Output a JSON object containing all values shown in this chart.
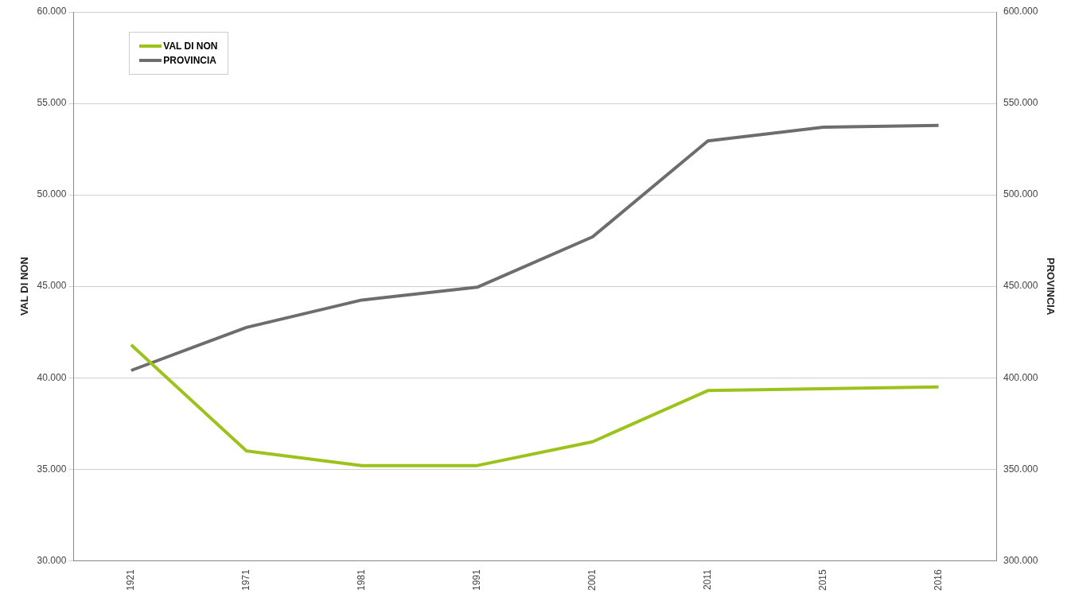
{
  "chart_data": {
    "type": "line",
    "ylabel": "VAL DI NON",
    "y2label": "PROVINCIA",
    "categories": [
      "1921",
      "1971",
      "1981",
      "1991",
      "2001",
      "2011",
      "2015",
      "2016"
    ],
    "series": [
      {
        "name": "VAL DI NON",
        "color": "#9bc31c",
        "values": [
          41800,
          36000,
          35200,
          35200,
          36500,
          39300,
          39400,
          39500
        ]
      },
      {
        "name": "PROVINCIA",
        "color": "#6d6d6d",
        "axis": "y2",
        "values": [
          404000,
          427500,
          442500,
          449500,
          477000,
          529500,
          537000,
          538000
        ]
      }
    ],
    "ylim": [
      30000,
      60000
    ],
    "yticks": [
      {
        "value": 30000,
        "label": "30.000"
      },
      {
        "value": 35000,
        "label": "35.000"
      },
      {
        "value": 40000,
        "label": "40.000"
      },
      {
        "value": 45000,
        "label": "45.000"
      },
      {
        "value": 50000,
        "label": "50.000"
      },
      {
        "value": 55000,
        "label": "55.000"
      },
      {
        "value": 60000,
        "label": "60.000"
      }
    ],
    "y2lim": [
      300000,
      600000
    ],
    "y2ticks": [
      {
        "value": 300000,
        "label": "300.000"
      },
      {
        "value": 350000,
        "label": "350.000"
      },
      {
        "value": 400000,
        "label": "400.000"
      },
      {
        "value": 450000,
        "label": "450.000"
      },
      {
        "value": 500000,
        "label": "500.000"
      },
      {
        "value": 550000,
        "label": "550.000"
      },
      {
        "value": 600000,
        "label": "600.000"
      }
    ],
    "grid": "y",
    "legend": "top left",
    "marker": "none",
    "line_style": "solid"
  }
}
